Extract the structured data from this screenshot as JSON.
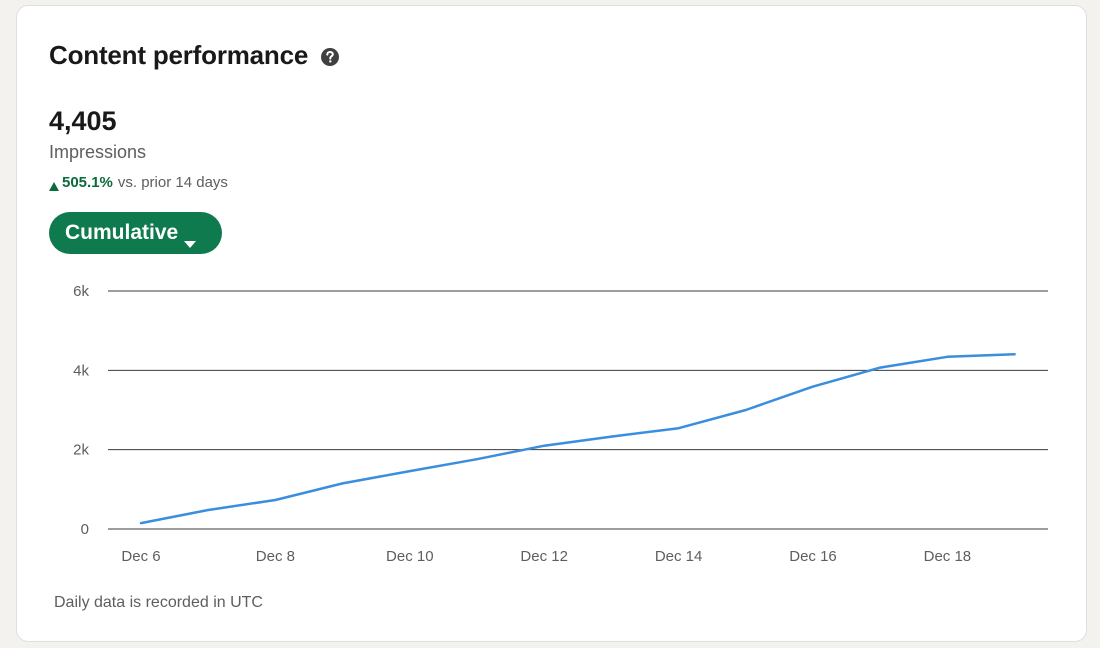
{
  "card": {
    "title": "Content performance",
    "help_icon": "question-circle-icon",
    "metric": {
      "value": "4,405",
      "label": "Impressions",
      "change_pct": "505.1%",
      "change_suffix": "vs. prior 14 days",
      "change_direction": "up",
      "change_color": "#0a6b3d"
    },
    "dropdown": {
      "label": "Cumulative",
      "icon": "caret-down-icon",
      "color": "#0e7a4d"
    },
    "footnote": "Daily data is recorded in UTC"
  },
  "chart_data": {
    "type": "line",
    "x": [
      "Dec 6",
      "Dec 7",
      "Dec 8",
      "Dec 9",
      "Dec 10",
      "Dec 11",
      "Dec 12",
      "Dec 13",
      "Dec 14",
      "Dec 15",
      "Dec 16",
      "Dec 17",
      "Dec 18",
      "Dec 19"
    ],
    "x_tick_labels": [
      "Dec 6",
      "Dec 8",
      "Dec 10",
      "Dec 12",
      "Dec 14",
      "Dec 16",
      "Dec 18"
    ],
    "series": [
      {
        "values": [
          150,
          480,
          730,
          1150,
          1460,
          1760,
          2100,
          2330,
          2540,
          3000,
          3590,
          4070,
          4340,
          4405
        ],
        "color": "#3b8ede"
      }
    ],
    "y_ticks": [
      0,
      2000,
      4000,
      6000
    ],
    "y_tick_labels": [
      "0",
      "2k",
      "4k",
      "6k"
    ],
    "ylim": [
      0,
      6000
    ],
    "grid": true,
    "legend": "none",
    "xlabel": "",
    "ylabel": ""
  }
}
